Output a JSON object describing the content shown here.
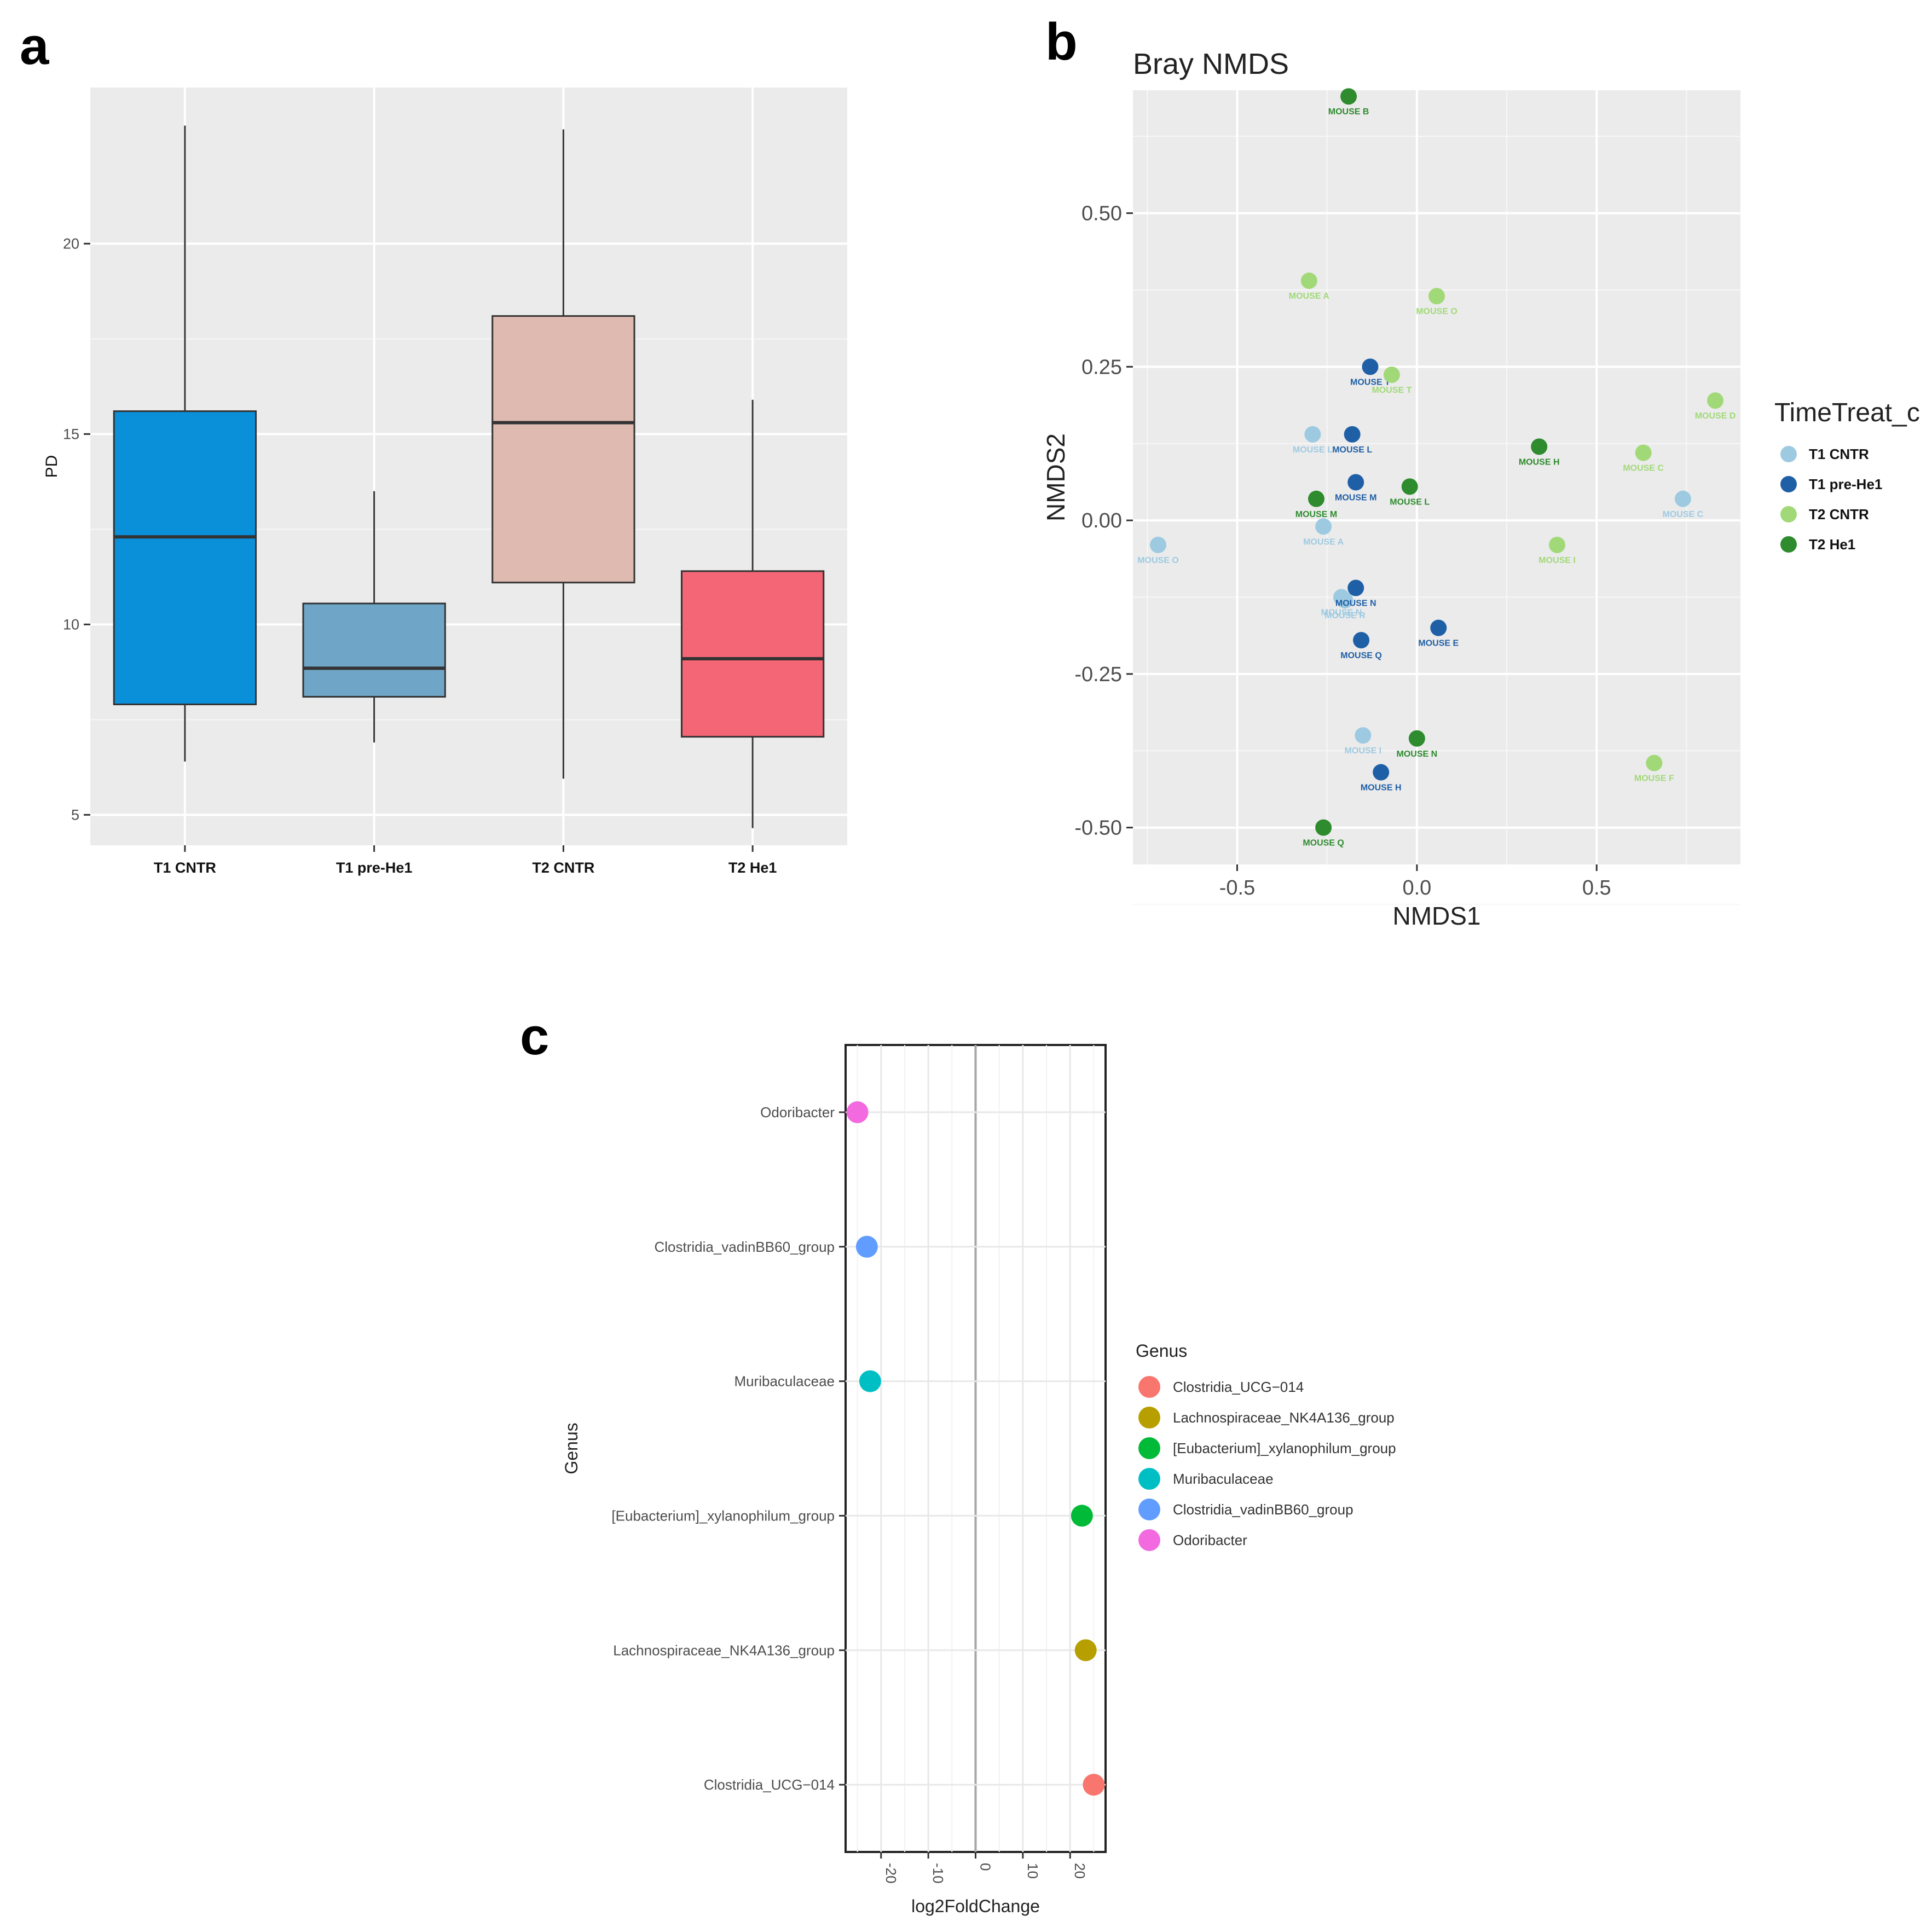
{
  "panel_letters": [
    "a",
    "b",
    "c"
  ],
  "chart_data": [
    {
      "type": "boxplot",
      "ylabel": "PD",
      "xlabel": "",
      "ylim": [
        4.2,
        24.1
      ],
      "yticks": [
        5,
        10,
        15,
        20
      ],
      "categories": [
        "T1 CNTR",
        "T1 pre-He1",
        "T2 CNTR",
        "T2 He1"
      ],
      "boxes": [
        {
          "name": "T1 CNTR",
          "min": 6.4,
          "q1": 7.9,
          "median": 12.3,
          "q3": 15.6,
          "max": 23.1,
          "color": "#0a8fd9"
        },
        {
          "name": "T1 pre-He1",
          "min": 6.9,
          "q1": 8.1,
          "median": 8.85,
          "q3": 10.55,
          "max": 13.5,
          "color": "#6fa6c7"
        },
        {
          "name": "T2 CNTR",
          "min": 5.95,
          "q1": 11.1,
          "median": 15.3,
          "q3": 18.1,
          "max": 23.0,
          "color": "#dfbab0"
        },
        {
          "name": "T2 He1",
          "min": 4.65,
          "q1": 7.05,
          "median": 9.1,
          "q3": 11.4,
          "max": 15.9,
          "color": "#f46576"
        }
      ]
    },
    {
      "type": "scatter",
      "title": "Bray NMDS",
      "xlabel": "NMDS1",
      "ylabel": "NMDS2",
      "xlim": [
        -0.79,
        0.9
      ],
      "ylim": [
        -0.56,
        0.7
      ],
      "xticks": [
        -0.5,
        0.0,
        0.5
      ],
      "xtick_labels": [
        "-0.5",
        "0.0",
        "0.5"
      ],
      "yticks": [
        -0.5,
        -0.25,
        0.0,
        0.25,
        0.5
      ],
      "ytick_labels": [
        "-0.50",
        "-0.25",
        "0.00",
        "0.25",
        "0.50"
      ],
      "legend_title": "TimeTreat_c",
      "legend_position": "right",
      "series": [
        {
          "name": "T1 CNTR",
          "color": "#9ecae1",
          "points": [
            {
              "x": 0.74,
              "y": 0.035,
              "label": "MOUSE C"
            },
            {
              "x": -0.29,
              "y": 0.14,
              "label": "MOUSE L"
            },
            {
              "x": -0.26,
              "y": -0.01,
              "label": "MOUSE A"
            },
            {
              "x": -0.72,
              "y": -0.04,
              "label": "MOUSE O"
            },
            {
              "x": -0.21,
              "y": -0.125,
              "label": "MOUSE N"
            },
            {
              "x": -0.2,
              "y": -0.13,
              "label": "MOUSE R"
            },
            {
              "x": -0.15,
              "y": -0.35,
              "label": "MOUSE I"
            }
          ]
        },
        {
          "name": "T1 pre-He1",
          "color": "#1f5fa6",
          "points": [
            {
              "x": -0.13,
              "y": 0.25,
              "label": "MOUSE T"
            },
            {
              "x": -0.18,
              "y": 0.14,
              "label": "MOUSE L"
            },
            {
              "x": -0.17,
              "y": 0.062,
              "label": "MOUSE M"
            },
            {
              "x": -0.17,
              "y": -0.11,
              "label": "MOUSE N"
            },
            {
              "x": -0.155,
              "y": -0.195,
              "label": "MOUSE Q"
            },
            {
              "x": 0.06,
              "y": -0.175,
              "label": "MOUSE E"
            },
            {
              "x": -0.1,
              "y": -0.41,
              "label": "MOUSE H"
            }
          ]
        },
        {
          "name": "T2 CNTR",
          "color": "#a1d978",
          "points": [
            {
              "x": -0.3,
              "y": 0.39,
              "label": "MOUSE A"
            },
            {
              "x": 0.055,
              "y": 0.365,
              "label": "MOUSE O"
            },
            {
              "x": -0.07,
              "y": 0.237,
              "label": "MOUSE T"
            },
            {
              "x": 0.83,
              "y": 0.195,
              "label": "MOUSE D"
            },
            {
              "x": 0.63,
              "y": 0.11,
              "label": "MOUSE C"
            },
            {
              "x": 0.39,
              "y": -0.04,
              "label": "MOUSE I"
            },
            {
              "x": 0.66,
              "y": -0.395,
              "label": "MOUSE F"
            }
          ]
        },
        {
          "name": "T2 He1",
          "color": "#2e8b2e",
          "points": [
            {
              "x": -0.19,
              "y": 0.69,
              "label": "MOUSE B"
            },
            {
              "x": 0.34,
              "y": 0.12,
              "label": "MOUSE H"
            },
            {
              "x": -0.02,
              "y": 0.055,
              "label": "MOUSE L"
            },
            {
              "x": -0.28,
              "y": 0.035,
              "label": "MOUSE M"
            },
            {
              "x": 0.0,
              "y": -0.355,
              "label": "MOUSE N"
            },
            {
              "x": -0.26,
              "y": -0.5,
              "label": "MOUSE Q"
            }
          ]
        }
      ]
    },
    {
      "type": "dot",
      "xlabel": "log2FoldChange",
      "ylabel": "Genus",
      "xlim": [
        -27.5,
        27.5
      ],
      "xticks": [
        -20,
        -10,
        0,
        10,
        20
      ],
      "xtick_labels": [
        "-20",
        "-10",
        "0",
        "10",
        "20"
      ],
      "legend_title": "Genus",
      "legend_position": "right",
      "categories": [
        "Odoribacter",
        "Clostridia_vadinBB60_group",
        "Muribaculaceae",
        "[Eubacterium]_xylanophilum_group",
        "Lachnospiraceae_NK4A136_group",
        "Clostridia_UCG−014"
      ],
      "values": [
        -25.0,
        -23.0,
        -22.3,
        22.5,
        23.3,
        25.0
      ],
      "colors": [
        "#f36ae0",
        "#619cff",
        "#00bfc4",
        "#00ba38",
        "#b79f00",
        "#f8766d"
      ],
      "legend_entries": [
        {
          "label": "Clostridia_UCG−014",
          "color": "#f8766d"
        },
        {
          "label": "Lachnospiraceae_NK4A136_group",
          "color": "#b79f00"
        },
        {
          "label": "[Eubacterium]_xylanophilum_group",
          "color": "#00ba38"
        },
        {
          "label": "Muribaculaceae",
          "color": "#00bfc4"
        },
        {
          "label": "Clostridia_vadinBB60_group",
          "color": "#619cff"
        },
        {
          "label": "Odoribacter",
          "color": "#f36ae0"
        }
      ]
    }
  ]
}
